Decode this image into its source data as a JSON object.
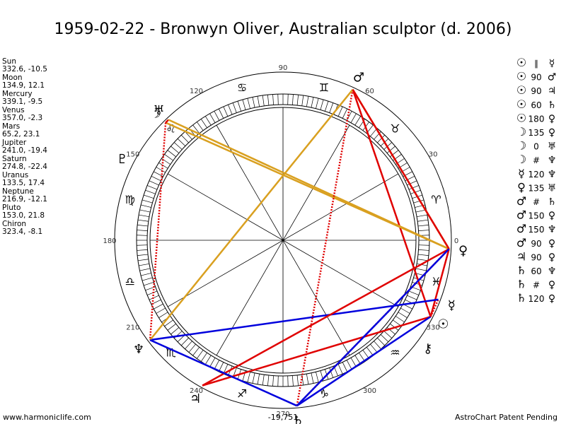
{
  "header": {
    "title": "1959-02-22 - Bronwyn Oliver, Australian sculptor (d. 2006)"
  },
  "planets": [
    {
      "name": "Sun",
      "glyph": "☉",
      "coords": "332.6, -10.5"
    },
    {
      "name": "Moon",
      "glyph": "☽",
      "coords": "134.9, 12.1"
    },
    {
      "name": "Mercury",
      "glyph": "☿",
      "coords": "339.1, -9.5"
    },
    {
      "name": "Venus",
      "glyph": "♀",
      "coords": "357.0, -2.3"
    },
    {
      "name": "Mars",
      "glyph": "♂",
      "coords": "65.2, 23.1"
    },
    {
      "name": "Jupiter",
      "glyph": "♃",
      "coords": "241.0, -19.4"
    },
    {
      "name": "Saturn",
      "glyph": "♄",
      "coords": "274.8, -22.4"
    },
    {
      "name": "Uranus",
      "glyph": "♅",
      "coords": "133.5, 17.4"
    },
    {
      "name": "Neptune",
      "glyph": "♆",
      "coords": "216.9, -12.1"
    },
    {
      "name": "Pluto",
      "glyph": "♇",
      "coords": "153.0, 21.8"
    },
    {
      "name": "Chiron",
      "glyph": "⚷",
      "coords": "323.4, -8.1"
    }
  ],
  "signs": [
    "♈",
    "♉",
    "♊",
    "♋",
    "♌",
    "♍",
    "♎",
    "♏",
    "♐",
    "♑",
    "♒",
    "♓"
  ],
  "degree_labels": [
    0,
    30,
    60,
    90,
    120,
    150,
    180,
    210,
    240,
    270,
    300,
    330
  ],
  "aspects": [
    {
      "a": "☉",
      "type": "∥",
      "b": "☿"
    },
    {
      "a": "☉",
      "type": "90",
      "b": "♂"
    },
    {
      "a": "☉",
      "type": "90",
      "b": "♃"
    },
    {
      "a": "☉",
      "type": "60",
      "b": "♄"
    },
    {
      "a": "☉",
      "type": "180",
      "b": "♀"
    },
    {
      "a": "☽",
      "type": "135",
      "b": "♀"
    },
    {
      "a": "☽",
      "type": "0",
      "b": "♅"
    },
    {
      "a": "☽",
      "type": "#",
      "b": "♆"
    },
    {
      "a": "☿",
      "type": "120",
      "b": "♆"
    },
    {
      "a": "♀",
      "type": "135",
      "b": "♅"
    },
    {
      "a": "♂",
      "type": "#",
      "b": "♄"
    },
    {
      "a": "♂",
      "type": "150",
      "b": "♀"
    },
    {
      "a": "♂",
      "type": "150",
      "b": "♆"
    },
    {
      "a": "♂",
      "type": "90",
      "b": "♀"
    },
    {
      "a": "♃",
      "type": "90",
      "b": "♀"
    },
    {
      "a": "♄",
      "type": "60",
      "b": "♆"
    },
    {
      "a": "♄",
      "type": "#",
      "b": "♀"
    },
    {
      "a": "♄",
      "type": "120",
      "b": "♀"
    }
  ],
  "footer": {
    "left": "www.harmoniclife.com",
    "center": "-19,751",
    "right": "AstroChart Patent Pending"
  }
}
